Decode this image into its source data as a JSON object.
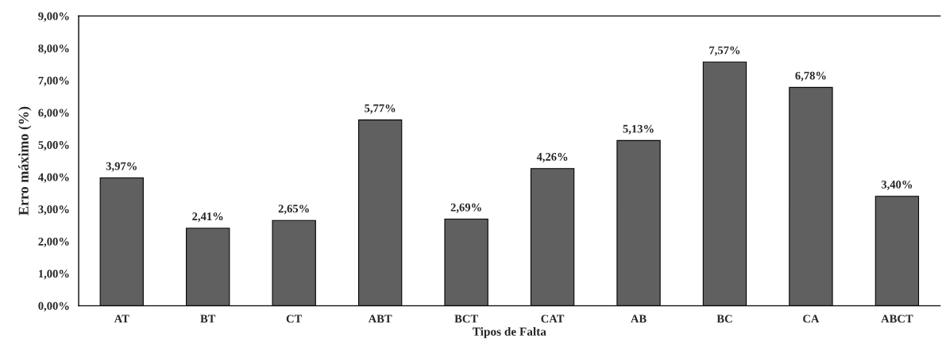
{
  "chart_data": {
    "type": "bar",
    "xlabel": "Tipos de Falta",
    "ylabel": "Erro máximo (%)",
    "categories": [
      "AT",
      "BT",
      "CT",
      "ABT",
      "BCT",
      "CAT",
      "AB",
      "BC",
      "CA",
      "ABCT"
    ],
    "values": [
      3.97,
      2.41,
      2.65,
      5.77,
      2.69,
      4.26,
      5.13,
      7.57,
      6.78,
      3.4
    ],
    "value_labels": [
      "3,97%",
      "2,41%",
      "2,65%",
      "5,77%",
      "2,69%",
      "4,26%",
      "5,13%",
      "7,57%",
      "6,78%",
      "3,40%"
    ],
    "color": "#606060",
    "ylim": [
      0,
      9
    ],
    "yticks": [
      {
        "value": 0,
        "label": "0,00%"
      },
      {
        "value": 1,
        "label": "1,00%"
      },
      {
        "value": 2,
        "label": "2,00%"
      },
      {
        "value": 3,
        "label": "3,00%"
      },
      {
        "value": 4,
        "label": "4,00%"
      },
      {
        "value": 5,
        "label": "5,00%"
      },
      {
        "value": 6,
        "label": "6,00%"
      },
      {
        "value": 7,
        "label": "7,00%"
      },
      {
        "value": 8,
        "label": "8,00%"
      },
      {
        "value": 9,
        "label": "9,00%"
      }
    ]
  }
}
